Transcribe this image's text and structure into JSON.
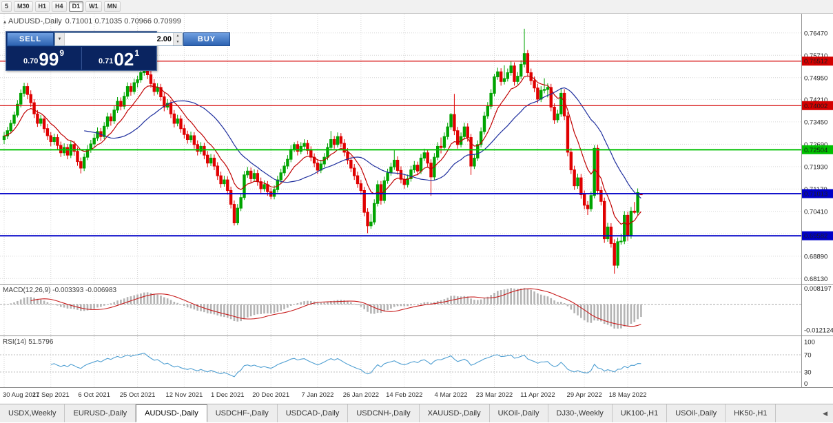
{
  "icons": {
    "collapse": "▴",
    "dropdown": "▼",
    "step_up": "▲",
    "step_down": "▼",
    "tab_scroll_left": "◀"
  },
  "toolbar": {
    "timeframes": [
      "5",
      "M30",
      "H1",
      "H4",
      "D1",
      "W1",
      "MN"
    ],
    "active": "D1"
  },
  "chart": {
    "title_symbol": "AUDUSD-,Daily",
    "ohlc_text": "0.71001 0.71035 0.70966 0.70999"
  },
  "one_click": {
    "sell_label": "SELL",
    "buy_label": "BUY",
    "volume": "2.00",
    "sell_small": "0.70",
    "sell_big": "99",
    "sell_sup": "9",
    "buy_small": "0.71",
    "buy_big": "02",
    "buy_sup": "1"
  },
  "chart_data": {
    "type": "candlestick",
    "symbol": "AUDUSD-",
    "timeframe": "Daily",
    "ylim": [
      0.6795,
      0.7712
    ],
    "y_grid": [
      [
        0.7647,
        "0.76470"
      ],
      [
        0.7571,
        "0.75710"
      ],
      [
        0.7495,
        "0.74950"
      ],
      [
        0.7421,
        "0.74210"
      ],
      [
        0.7345,
        "0.73450"
      ],
      [
        0.7269,
        "0.72690"
      ],
      [
        0.7193,
        "0.71930"
      ],
      [
        0.7117,
        "0.71170"
      ],
      [
        0.7041,
        "0.70410"
      ],
      [
        0.6965,
        ""
      ],
      [
        0.6889,
        "0.68890"
      ],
      [
        0.6813,
        "0.68130"
      ]
    ],
    "x_labels": [
      "30 Aug 2021",
      "17 Sep 2021",
      "6 Oct 2021",
      "25 Oct 2021",
      "12 Nov 2021",
      "1 Dec 2021",
      "20 Dec 2021",
      "7 Jan 2022",
      "26 Jan 2022",
      "14 Feb 2022",
      "4 Mar 2022",
      "23 Mar 2022",
      "11 Apr 2022",
      "29 Apr 2022",
      "18 May 2022"
    ],
    "x_label_indices": [
      0,
      14,
      27,
      40,
      54,
      67,
      80,
      94,
      107,
      120,
      134,
      147,
      160,
      174,
      187
    ],
    "levels": [
      {
        "price": 0.75512,
        "color": "#d40000",
        "width": 1.2,
        "label": "0.75512"
      },
      {
        "price": 0.74002,
        "color": "#d40000",
        "width": 1.2,
        "label": "0.74002"
      },
      {
        "price": 0.72504,
        "color": "#00c000",
        "width": 2,
        "label": "0.72504"
      },
      {
        "price": 0.71013,
        "color": "#0000c8",
        "width": 2,
        "label": "0.71013"
      },
      {
        "price": 0.69582,
        "color": "#0000c8",
        "width": 2,
        "label": "0.69582"
      }
    ],
    "moving_averages": [
      {
        "name": "ma-fast-red",
        "type": "ema",
        "period": 10,
        "color": "#c00000"
      },
      {
        "name": "ma-slow-blue",
        "type": "sma",
        "period": 25,
        "color": "#1f2f9e"
      }
    ],
    "candle_colors": {
      "up": "#00a400",
      "down": "#e00000"
    },
    "candles_ohlc": [
      [
        0.7285,
        0.7311,
        0.727,
        0.7297
      ],
      [
        0.7297,
        0.7328,
        0.7286,
        0.7315
      ],
      [
        0.7315,
        0.7352,
        0.7305,
        0.734
      ],
      [
        0.734,
        0.738,
        0.7331,
        0.7368
      ],
      [
        0.7368,
        0.7419,
        0.736,
        0.7405
      ],
      [
        0.7405,
        0.7455,
        0.7394,
        0.7442
      ],
      [
        0.7442,
        0.7478,
        0.743,
        0.7465
      ],
      [
        0.7465,
        0.7477,
        0.7422,
        0.7438
      ],
      [
        0.7438,
        0.7452,
        0.7396,
        0.741
      ],
      [
        0.741,
        0.7422,
        0.7358,
        0.7372
      ],
      [
        0.7372,
        0.7385,
        0.7328,
        0.734
      ],
      [
        0.734,
        0.7368,
        0.733,
        0.7355
      ],
      [
        0.7355,
        0.7366,
        0.7308,
        0.7322
      ],
      [
        0.7322,
        0.7338,
        0.7284,
        0.7298
      ],
      [
        0.7298,
        0.731,
        0.7262,
        0.7278
      ],
      [
        0.7278,
        0.7305,
        0.7266,
        0.7292
      ],
      [
        0.7292,
        0.7303,
        0.725,
        0.7265
      ],
      [
        0.7265,
        0.7278,
        0.7226,
        0.724
      ],
      [
        0.724,
        0.7272,
        0.723,
        0.7258
      ],
      [
        0.7258,
        0.727,
        0.7218,
        0.7232
      ],
      [
        0.7232,
        0.7282,
        0.7222,
        0.7268
      ],
      [
        0.7268,
        0.728,
        0.723,
        0.7245
      ],
      [
        0.7245,
        0.7258,
        0.7196,
        0.721
      ],
      [
        0.721,
        0.7224,
        0.717,
        0.7188
      ],
      [
        0.7188,
        0.7238,
        0.7178,
        0.7225
      ],
      [
        0.7225,
        0.7266,
        0.7215,
        0.7252
      ],
      [
        0.7252,
        0.7284,
        0.724,
        0.727
      ],
      [
        0.727,
        0.7305,
        0.7258,
        0.729
      ],
      [
        0.729,
        0.7326,
        0.728,
        0.7312
      ],
      [
        0.7312,
        0.7324,
        0.728,
        0.7295
      ],
      [
        0.7295,
        0.7344,
        0.7286,
        0.733
      ],
      [
        0.733,
        0.7376,
        0.732,
        0.7362
      ],
      [
        0.7362,
        0.7374,
        0.7332,
        0.7348
      ],
      [
        0.7348,
        0.7399,
        0.7338,
        0.7385
      ],
      [
        0.7385,
        0.7429,
        0.7375,
        0.7415
      ],
      [
        0.7415,
        0.7428,
        0.7384,
        0.7398
      ],
      [
        0.7398,
        0.7446,
        0.7388,
        0.7432
      ],
      [
        0.7432,
        0.7479,
        0.7422,
        0.7465
      ],
      [
        0.7465,
        0.7477,
        0.7434,
        0.7448
      ],
      [
        0.7448,
        0.7492,
        0.7438,
        0.7478
      ],
      [
        0.7478,
        0.7502,
        0.7462,
        0.7488
      ],
      [
        0.7488,
        0.7526,
        0.7478,
        0.7512
      ],
      [
        0.7512,
        0.7555,
        0.7502,
        0.7535
      ],
      [
        0.7535,
        0.7547,
        0.749,
        0.7505
      ],
      [
        0.7505,
        0.7518,
        0.7461,
        0.7475
      ],
      [
        0.7475,
        0.749,
        0.7434,
        0.7448
      ],
      [
        0.7448,
        0.7476,
        0.7438,
        0.7462
      ],
      [
        0.7462,
        0.7474,
        0.7416,
        0.743
      ],
      [
        0.743,
        0.7444,
        0.7381,
        0.7395
      ],
      [
        0.7395,
        0.7422,
        0.7385,
        0.7408
      ],
      [
        0.7408,
        0.742,
        0.7358,
        0.7372
      ],
      [
        0.7372,
        0.7385,
        0.7326,
        0.734
      ],
      [
        0.734,
        0.7369,
        0.733,
        0.7355
      ],
      [
        0.7355,
        0.7367,
        0.7308,
        0.7322
      ],
      [
        0.7322,
        0.7336,
        0.7288,
        0.7302
      ],
      [
        0.7302,
        0.7315,
        0.7271,
        0.7285
      ],
      [
        0.7285,
        0.7312,
        0.7275,
        0.7298
      ],
      [
        0.7298,
        0.731,
        0.7254,
        0.7268
      ],
      [
        0.7268,
        0.7282,
        0.7231,
        0.7245
      ],
      [
        0.7245,
        0.7276,
        0.7235,
        0.7262
      ],
      [
        0.7262,
        0.7274,
        0.7218,
        0.7232
      ],
      [
        0.7232,
        0.7246,
        0.7191,
        0.7205
      ],
      [
        0.7205,
        0.7236,
        0.7195,
        0.7222
      ],
      [
        0.7222,
        0.7234,
        0.7181,
        0.7195
      ],
      [
        0.7195,
        0.7208,
        0.7148,
        0.7162
      ],
      [
        0.7162,
        0.7176,
        0.7121,
        0.7135
      ],
      [
        0.7135,
        0.7162,
        0.7125,
        0.7148
      ],
      [
        0.7148,
        0.716,
        0.7098,
        0.7112
      ],
      [
        0.7112,
        0.7125,
        0.7051,
        0.7065
      ],
      [
        0.7065,
        0.7078,
        0.6993,
        0.7002
      ],
      [
        0.7002,
        0.7066,
        0.6994,
        0.7052
      ],
      [
        0.7052,
        0.7102,
        0.7042,
        0.7088
      ],
      [
        0.7088,
        0.7178,
        0.708,
        0.7165
      ],
      [
        0.7165,
        0.7192,
        0.7155,
        0.7178
      ],
      [
        0.7178,
        0.719,
        0.7138,
        0.7152
      ],
      [
        0.7152,
        0.7184,
        0.7142,
        0.717
      ],
      [
        0.717,
        0.7182,
        0.7128,
        0.7142
      ],
      [
        0.7142,
        0.7156,
        0.7104,
        0.7118
      ],
      [
        0.7118,
        0.7146,
        0.7108,
        0.7132
      ],
      [
        0.7132,
        0.7144,
        0.7094,
        0.7108
      ],
      [
        0.7108,
        0.712,
        0.7082,
        0.7092
      ],
      [
        0.7092,
        0.7129,
        0.7082,
        0.7115
      ],
      [
        0.7115,
        0.7162,
        0.7105,
        0.7148
      ],
      [
        0.7148,
        0.7186,
        0.7138,
        0.7172
      ],
      [
        0.7172,
        0.7209,
        0.7162,
        0.7195
      ],
      [
        0.7195,
        0.7232,
        0.7185,
        0.7218
      ],
      [
        0.7218,
        0.7266,
        0.7208,
        0.7252
      ],
      [
        0.7252,
        0.7276,
        0.7242,
        0.7268
      ],
      [
        0.7268,
        0.728,
        0.7231,
        0.7245
      ],
      [
        0.7245,
        0.7276,
        0.7235,
        0.7262
      ],
      [
        0.7262,
        0.7286,
        0.7252,
        0.7272
      ],
      [
        0.7272,
        0.7284,
        0.7234,
        0.7248
      ],
      [
        0.7248,
        0.7262,
        0.7211,
        0.7225
      ],
      [
        0.7225,
        0.7238,
        0.7191,
        0.7205
      ],
      [
        0.7205,
        0.7218,
        0.7167,
        0.7181
      ],
      [
        0.7181,
        0.7216,
        0.7171,
        0.7202
      ],
      [
        0.7202,
        0.7239,
        0.7192,
        0.7225
      ],
      [
        0.7225,
        0.7272,
        0.7215,
        0.7258
      ],
      [
        0.7258,
        0.7314,
        0.7248,
        0.7285
      ],
      [
        0.7285,
        0.7297,
        0.7254,
        0.7268
      ],
      [
        0.7268,
        0.7309,
        0.7258,
        0.7295
      ],
      [
        0.7295,
        0.7307,
        0.7258,
        0.7272
      ],
      [
        0.7272,
        0.7286,
        0.7228,
        0.7242
      ],
      [
        0.7242,
        0.7256,
        0.7201,
        0.7215
      ],
      [
        0.7215,
        0.7228,
        0.7174,
        0.7188
      ],
      [
        0.7188,
        0.7202,
        0.7148,
        0.7162
      ],
      [
        0.7162,
        0.7176,
        0.7121,
        0.7135
      ],
      [
        0.7135,
        0.7148,
        0.7098,
        0.7112
      ],
      [
        0.7112,
        0.7124,
        0.7024,
        0.7038
      ],
      [
        0.7038,
        0.7052,
        0.6967,
        0.6992
      ],
      [
        0.6992,
        0.7032,
        0.6982,
        0.7005
      ],
      [
        0.7005,
        0.7082,
        0.6996,
        0.7068
      ],
      [
        0.7068,
        0.7146,
        0.7058,
        0.7132
      ],
      [
        0.7132,
        0.7144,
        0.7064,
        0.7078
      ],
      [
        0.7078,
        0.7159,
        0.7068,
        0.7145
      ],
      [
        0.7145,
        0.7186,
        0.7135,
        0.7172
      ],
      [
        0.7172,
        0.7206,
        0.7162,
        0.7192
      ],
      [
        0.7192,
        0.7248,
        0.7182,
        0.7215
      ],
      [
        0.7215,
        0.7228,
        0.7166,
        0.718
      ],
      [
        0.718,
        0.7194,
        0.7136,
        0.715
      ],
      [
        0.715,
        0.7164,
        0.7118,
        0.7132
      ],
      [
        0.7132,
        0.7166,
        0.7122,
        0.7152
      ],
      [
        0.7152,
        0.7196,
        0.7142,
        0.7182
      ],
      [
        0.7182,
        0.7212,
        0.7172,
        0.7198
      ],
      [
        0.7198,
        0.721,
        0.7164,
        0.7178
      ],
      [
        0.7178,
        0.7236,
        0.7168,
        0.7222
      ],
      [
        0.7222,
        0.7254,
        0.7212,
        0.724
      ],
      [
        0.724,
        0.7252,
        0.7191,
        0.7205
      ],
      [
        0.7205,
        0.7218,
        0.7094,
        0.7158
      ],
      [
        0.7158,
        0.7239,
        0.7148,
        0.7225
      ],
      [
        0.7225,
        0.7276,
        0.7215,
        0.7262
      ],
      [
        0.7262,
        0.7292,
        0.7238,
        0.7258
      ],
      [
        0.7258,
        0.7309,
        0.7248,
        0.7295
      ],
      [
        0.7295,
        0.7342,
        0.7285,
        0.7328
      ],
      [
        0.7328,
        0.7375,
        0.7318,
        0.737
      ],
      [
        0.737,
        0.744,
        0.73,
        0.7315
      ],
      [
        0.7315,
        0.7328,
        0.7254,
        0.7268
      ],
      [
        0.7268,
        0.7309,
        0.7258,
        0.7295
      ],
      [
        0.7295,
        0.7342,
        0.7285,
        0.7328
      ],
      [
        0.7328,
        0.734,
        0.7278,
        0.7292
      ],
      [
        0.7292,
        0.7304,
        0.7165,
        0.7195
      ],
      [
        0.7195,
        0.7236,
        0.7185,
        0.7222
      ],
      [
        0.7222,
        0.7282,
        0.7212,
        0.7268
      ],
      [
        0.7268,
        0.7326,
        0.7258,
        0.7312
      ],
      [
        0.7312,
        0.7379,
        0.7302,
        0.7365
      ],
      [
        0.7365,
        0.7412,
        0.7355,
        0.7398
      ],
      [
        0.7398,
        0.7456,
        0.7388,
        0.7442
      ],
      [
        0.7442,
        0.7508,
        0.7432,
        0.7498
      ],
      [
        0.7498,
        0.7529,
        0.7488,
        0.7515
      ],
      [
        0.7515,
        0.7527,
        0.7468,
        0.7482
      ],
      [
        0.7482,
        0.7537,
        0.7472,
        0.7492
      ],
      [
        0.7492,
        0.7526,
        0.7482,
        0.7512
      ],
      [
        0.7512,
        0.755,
        0.7502,
        0.7535
      ],
      [
        0.7535,
        0.7547,
        0.7468,
        0.7482
      ],
      [
        0.7482,
        0.7514,
        0.7472,
        0.75
      ],
      [
        0.75,
        0.7554,
        0.749,
        0.754
      ],
      [
        0.7541,
        0.7661,
        0.753,
        0.7577
      ],
      [
        0.7577,
        0.7589,
        0.7498,
        0.7512
      ],
      [
        0.7512,
        0.7526,
        0.7471,
        0.7485
      ],
      [
        0.7485,
        0.7499,
        0.7446,
        0.746
      ],
      [
        0.746,
        0.7474,
        0.7408,
        0.7422
      ],
      [
        0.7422,
        0.7466,
        0.7412,
        0.7452
      ],
      [
        0.7452,
        0.7493,
        0.7442,
        0.7455
      ],
      [
        0.7455,
        0.7476,
        0.7428,
        0.7462
      ],
      [
        0.7462,
        0.7474,
        0.7381,
        0.7395
      ],
      [
        0.7395,
        0.7408,
        0.7338,
        0.7352
      ],
      [
        0.7352,
        0.7386,
        0.7342,
        0.7372
      ],
      [
        0.7372,
        0.7458,
        0.7362,
        0.7442
      ],
      [
        0.7442,
        0.7456,
        0.7351,
        0.7365
      ],
      [
        0.7365,
        0.7378,
        0.7228,
        0.7242
      ],
      [
        0.7242,
        0.7256,
        0.7168,
        0.7182
      ],
      [
        0.7182,
        0.7196,
        0.7114,
        0.7128
      ],
      [
        0.7128,
        0.7169,
        0.7118,
        0.7155
      ],
      [
        0.7155,
        0.7168,
        0.7084,
        0.7098
      ],
      [
        0.7098,
        0.7112,
        0.7048,
        0.7062
      ],
      [
        0.7062,
        0.7076,
        0.7029,
        0.705
      ],
      [
        0.705,
        0.7109,
        0.704,
        0.7095
      ],
      [
        0.7095,
        0.7266,
        0.7085,
        0.7255
      ],
      [
        0.7255,
        0.7267,
        0.7098,
        0.7112
      ],
      [
        0.7112,
        0.7126,
        0.7061,
        0.7075
      ],
      [
        0.7075,
        0.7088,
        0.6934,
        0.6948
      ],
      [
        0.6948,
        0.7002,
        0.6938,
        0.6988
      ],
      [
        0.6988,
        0.7001,
        0.6918,
        0.6932
      ],
      [
        0.6932,
        0.6946,
        0.6829,
        0.6858
      ],
      [
        0.6858,
        0.6952,
        0.6848,
        0.6938
      ],
      [
        0.6938,
        0.6964,
        0.6928,
        0.694
      ],
      [
        0.694,
        0.7042,
        0.693,
        0.7028
      ],
      [
        0.7028,
        0.704,
        0.6941,
        0.6958
      ],
      [
        0.6958,
        0.7056,
        0.6948,
        0.7042
      ],
      [
        0.7042,
        0.7073,
        0.7032,
        0.7038
      ],
      [
        0.7038,
        0.7119,
        0.7028,
        0.7105
      ],
      [
        0.71001,
        0.71035,
        0.70966,
        0.70999
      ]
    ],
    "indicators": {
      "macd": {
        "label": "MACD(12,26,9) -0.003393 -0.006983",
        "params": [
          12,
          26,
          9
        ],
        "values_shown": [
          "-0.003393",
          "-0.006983"
        ],
        "axis_labels": [
          "0.008197",
          "-0.012124"
        ],
        "axis_label_values": [
          0.008197,
          -0.012124
        ],
        "ylim": [
          -0.0148,
          0.0094
        ],
        "bar_color": "#b4b4b4",
        "signal_color": "#c81e1e"
      },
      "rsi": {
        "label": "RSI(14) 51.5796",
        "period": 14,
        "value_shown": "51.5796",
        "axis_labels": [
          [
            "100",
            100
          ],
          [
            "70",
            70
          ],
          [
            "30",
            30
          ],
          [
            "0",
            0
          ]
        ],
        "levels": [
          70,
          30
        ],
        "line_color": "#4f9fd2"
      }
    }
  },
  "tabs": {
    "items": [
      "USDX,Weekly",
      "EURUSD-,Daily",
      "AUDUSD-,Daily",
      "USDCHF-,Daily",
      "USDCAD-,Daily",
      "USDCNH-,Daily",
      "XAUUSD-,Daily",
      "UKOil-,Daily",
      "DJ30-,Weekly",
      "UK100-,H1",
      "USOil-,Daily",
      "HK50-,H1"
    ],
    "active_index": 2
  }
}
